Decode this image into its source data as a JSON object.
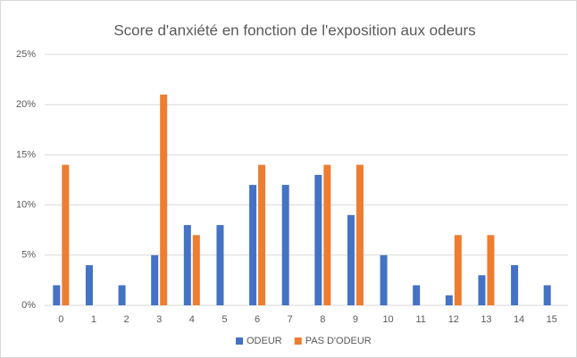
{
  "chart_data": {
    "type": "bar",
    "title": "Score d'anxiété en fonction de l'exposition aux odeurs",
    "categories": [
      "0",
      "1",
      "2",
      "3",
      "4",
      "5",
      "6",
      "7",
      "8",
      "9",
      "10",
      "11",
      "12",
      "13",
      "14",
      "15"
    ],
    "series": [
      {
        "name": "ODEUR",
        "color": "#4472c4",
        "values": [
          2,
          4,
          2,
          5,
          8,
          8,
          12,
          12,
          13,
          9,
          5,
          2,
          1,
          3,
          4,
          2
        ]
      },
      {
        "name": "PAS D'ODEUR",
        "color": "#ed7d31",
        "values": [
          14,
          0,
          0,
          21,
          7,
          0,
          14,
          0,
          14,
          14,
          0,
          0,
          7,
          7,
          0,
          0
        ]
      }
    ],
    "ylim": [
      0,
      25
    ],
    "yticks": [
      {
        "value": 0,
        "label": "0%"
      },
      {
        "value": 5,
        "label": "5%"
      },
      {
        "value": 10,
        "label": "10%"
      },
      {
        "value": 15,
        "label": "15%"
      },
      {
        "value": 20,
        "label": "20%"
      },
      {
        "value": 25,
        "label": "25%"
      }
    ],
    "grid": true,
    "legend": "bottom"
  }
}
